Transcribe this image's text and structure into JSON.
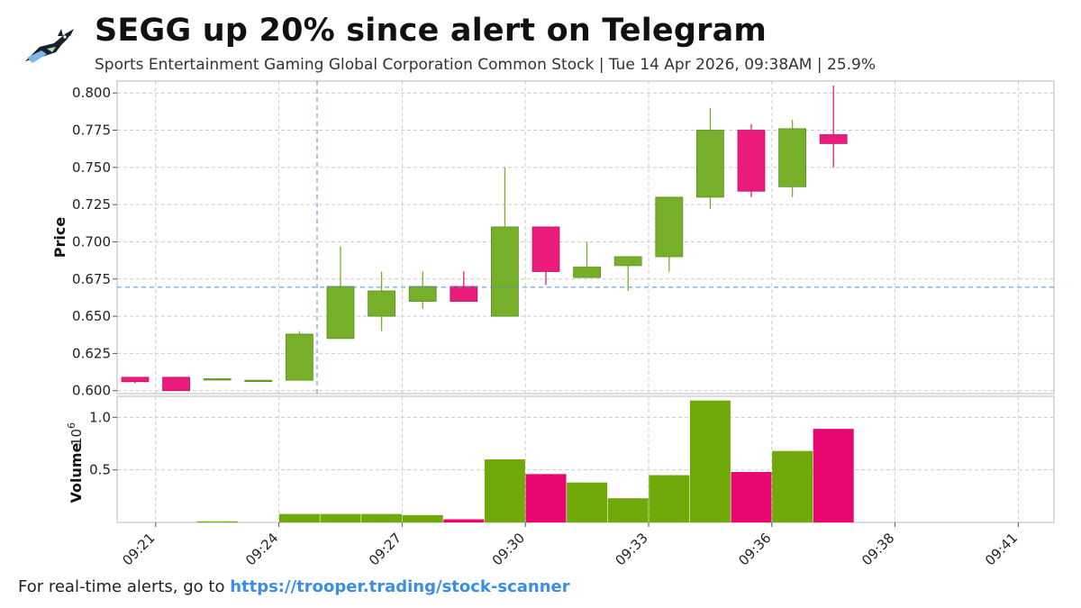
{
  "title": "SEGG up 20% since alert on Telegram",
  "subtitle": "Sports Entertainment Gaming Global Corporation Common Stock | Tue 14 Apr 2026, 09:38AM | 25.9%",
  "footer": {
    "prefix": "For real-time alerts, go to ",
    "link": "https://trooper.trading/stock-scanner"
  },
  "colors": {
    "up": "#76b02a",
    "down": "#ea1b7a",
    "grid": "#cccccc",
    "crosshair": "#4a90d9"
  },
  "chart_data": {
    "type": "candlestick",
    "price_axis": {
      "label": "Price",
      "ticks": [
        "0.600",
        "0.625",
        "0.650",
        "0.675",
        "0.700",
        "0.725",
        "0.750",
        "0.775",
        "0.800"
      ],
      "ylim": [
        0.598,
        0.808
      ]
    },
    "volume_axis": {
      "label": "Volume",
      "exponent_label": "10",
      "exponent": "6",
      "ticks": [
        "0.5",
        "1.0"
      ],
      "ylim": [
        0,
        1.2
      ]
    },
    "x_ticks": [
      "09:21",
      "09:24",
      "09:27",
      "09:30",
      "09:33",
      "09:36",
      "09:38",
      "09:41"
    ],
    "crosshair": {
      "minute": 4.43,
      "price": 0.6695
    },
    "candles": [
      {
        "minute": 0,
        "open": 0.609,
        "high": 0.609,
        "low": 0.605,
        "close": 0.606,
        "volume": 0.0
      },
      {
        "minute": 1,
        "open": 0.609,
        "high": 0.609,
        "low": 0.6,
        "close": 0.6,
        "volume": 0.0
      },
      {
        "minute": 2,
        "open": 0.608,
        "high": 0.608,
        "low": 0.608,
        "close": 0.608,
        "volume": 0.01
      },
      {
        "minute": 3,
        "open": 0.607,
        "high": 0.607,
        "low": 0.607,
        "close": 0.607,
        "volume": 0.0
      },
      {
        "minute": 4,
        "open": 0.607,
        "high": 0.64,
        "low": 0.607,
        "close": 0.638,
        "volume": 0.08
      },
      {
        "minute": 5,
        "open": 0.635,
        "high": 0.697,
        "low": 0.635,
        "close": 0.67,
        "volume": 0.08
      },
      {
        "minute": 6,
        "open": 0.65,
        "high": 0.68,
        "low": 0.64,
        "close": 0.667,
        "volume": 0.08
      },
      {
        "minute": 7,
        "open": 0.66,
        "high": 0.68,
        "low": 0.655,
        "close": 0.67,
        "volume": 0.07
      },
      {
        "minute": 8,
        "open": 0.67,
        "high": 0.68,
        "low": 0.66,
        "close": 0.66,
        "volume": 0.03
      },
      {
        "minute": 9,
        "open": 0.65,
        "high": 0.75,
        "low": 0.65,
        "close": 0.71,
        "volume": 0.6
      },
      {
        "minute": 10,
        "open": 0.71,
        "high": 0.71,
        "low": 0.671,
        "close": 0.68,
        "volume": 0.46
      },
      {
        "minute": 11,
        "open": 0.676,
        "high": 0.7,
        "low": 0.676,
        "close": 0.683,
        "volume": 0.38
      },
      {
        "minute": 12,
        "open": 0.684,
        "high": 0.69,
        "low": 0.667,
        "close": 0.69,
        "volume": 0.23
      },
      {
        "minute": 13,
        "open": 0.69,
        "high": 0.73,
        "low": 0.68,
        "close": 0.73,
        "volume": 0.45
      },
      {
        "minute": 14,
        "open": 0.73,
        "high": 0.79,
        "low": 0.722,
        "close": 0.775,
        "volume": 1.16
      },
      {
        "minute": 15,
        "open": 0.775,
        "high": 0.779,
        "low": 0.73,
        "close": 0.734,
        "volume": 0.48
      },
      {
        "minute": 16,
        "open": 0.737,
        "high": 0.782,
        "low": 0.73,
        "close": 0.776,
        "volume": 0.68
      },
      {
        "minute": 17,
        "open": 0.772,
        "high": 0.805,
        "low": 0.75,
        "close": 0.766,
        "volume": 0.89
      }
    ]
  }
}
